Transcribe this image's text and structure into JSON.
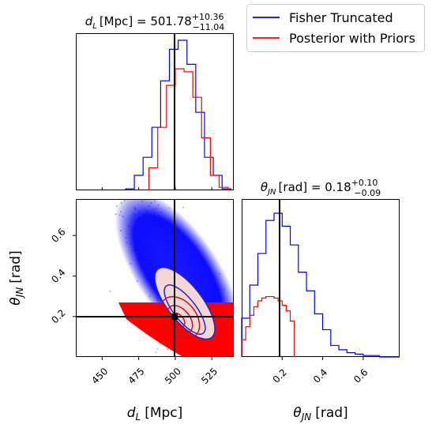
{
  "chart_data": [
    {
      "type": "histogram",
      "panel": "top-left",
      "title": {
        "var": "d",
        "sub": "L",
        "unit": "[Mpc] = 501.78",
        "sup": "+10.36",
        "subv": "−11.04"
      },
      "xlim": [
        432,
        540
      ],
      "truth": 500,
      "series": [
        {
          "name": "Fisher Truncated",
          "color": "#0000ff",
          "bins_x": [
            466,
            472,
            478,
            484,
            490,
            496,
            502,
            508,
            514,
            520,
            526,
            532,
            538
          ],
          "values": [
            0.01,
            0.1,
            0.22,
            0.42,
            0.73,
            0.94,
            1.0,
            0.84,
            0.52,
            0.22,
            0.1,
            0.01
          ]
        },
        {
          "name": "Posterior with Priors",
          "color": "#ff0000",
          "bins_x": [
            482,
            488,
            494,
            500,
            506,
            512,
            518,
            524,
            530,
            536
          ],
          "values": [
            0.15,
            0.42,
            0.7,
            0.81,
            0.79,
            0.62,
            0.35,
            0.1,
            0.02
          ]
        }
      ]
    },
    {
      "type": "scatter",
      "panel": "bottom-left",
      "xlabel": {
        "var": "d",
        "sub": "L",
        "unit": "[Mpc]"
      },
      "ylabel": {
        "var": "θ",
        "sub": "JN",
        "unit": "[rad]"
      },
      "xlim": [
        432,
        540
      ],
      "ylim": [
        0.0,
        0.78
      ],
      "xticks": [
        450,
        475,
        500,
        525
      ],
      "yticks": [
        0.2,
        0.4,
        0.6
      ],
      "truth": {
        "x": 500,
        "y": 0.18
      },
      "series": [
        {
          "name": "Fisher Truncated",
          "color": "#0000ff",
          "center": [
            501,
            0.38
          ],
          "spread": [
            12,
            0.14
          ],
          "rho": -0.75
        },
        {
          "name": "Posterior with Priors",
          "color": "#ff0000",
          "center": [
            507,
            0.15
          ],
          "spread": [
            9,
            0.08
          ],
          "rho": -0.5
        }
      ]
    },
    {
      "type": "histogram",
      "panel": "bottom-right",
      "title": {
        "var": "θ",
        "sub": "JN",
        "unit": "[rad] = 0.18",
        "sup": "+0.10",
        "subv": "−0.09"
      },
      "xlabel": {
        "var": "θ",
        "sub": "JN",
        "unit": "[rad]"
      },
      "xlim": [
        0.0,
        0.78
      ],
      "xticks": [
        0.2,
        0.4,
        0.6
      ],
      "truth": 0.18,
      "series": [
        {
          "name": "Fisher Truncated",
          "color": "#0000ff",
          "bins_x": [
            0.0,
            0.04,
            0.08,
            0.12,
            0.16,
            0.2,
            0.24,
            0.28,
            0.32,
            0.36,
            0.4,
            0.44,
            0.48,
            0.52,
            0.56,
            0.6,
            0.64,
            0.68,
            0.72,
            0.76,
            0.78
          ],
          "values": [
            0.27,
            0.5,
            0.72,
            0.95,
            1.0,
            0.91,
            0.78,
            0.59,
            0.46,
            0.3,
            0.19,
            0.08,
            0.05,
            0.03,
            0.02,
            0.01,
            0.01,
            0.0,
            0.0,
            0.0
          ]
        },
        {
          "name": "Posterior with Priors",
          "color": "#ff0000",
          "bins_x": [
            0.0,
            0.02,
            0.04,
            0.06,
            0.08,
            0.1,
            0.12,
            0.14,
            0.16,
            0.18,
            0.2,
            0.22,
            0.24,
            0.26
          ],
          "values": [
            0.12,
            0.21,
            0.29,
            0.35,
            0.39,
            0.41,
            0.42,
            0.42,
            0.41,
            0.39,
            0.36,
            0.32,
            0.25
          ]
        }
      ]
    }
  ],
  "legend": [
    {
      "label": "Fisher Truncated",
      "color": "#0000ff"
    },
    {
      "label": "Posterior with Priors",
      "color": "#ff0000"
    }
  ]
}
